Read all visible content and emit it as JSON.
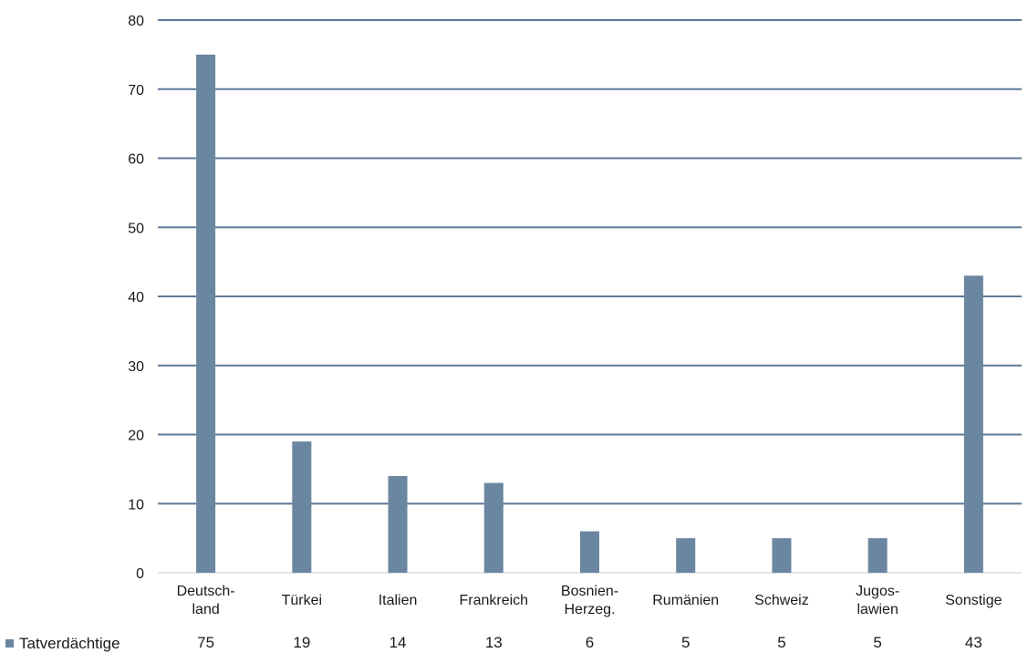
{
  "chart_data": {
    "type": "bar",
    "categories": [
      [
        "Deutsch-",
        "land"
      ],
      [
        "Türkei"
      ],
      [
        "Italien"
      ],
      [
        "Frankreich"
      ],
      [
        "Bosnien-",
        "Herzeg."
      ],
      [
        "Rumänien"
      ],
      [
        "Schweiz"
      ],
      [
        "Jugos-",
        "lawien"
      ],
      [
        "Sonstige"
      ]
    ],
    "series": [
      {
        "name": "Tatverdächtige",
        "values": [
          75,
          19,
          14,
          13,
          6,
          5,
          5,
          5,
          43
        ],
        "color": "#6b86a0"
      }
    ],
    "ylim": [
      0,
      80
    ],
    "yticks": [
      0,
      10,
      20,
      30,
      40,
      50,
      60,
      70,
      80
    ],
    "grid": true,
    "legend_position": "bottom-left, in data table",
    "data_table": true,
    "gridline_color": "#5e7a96"
  }
}
